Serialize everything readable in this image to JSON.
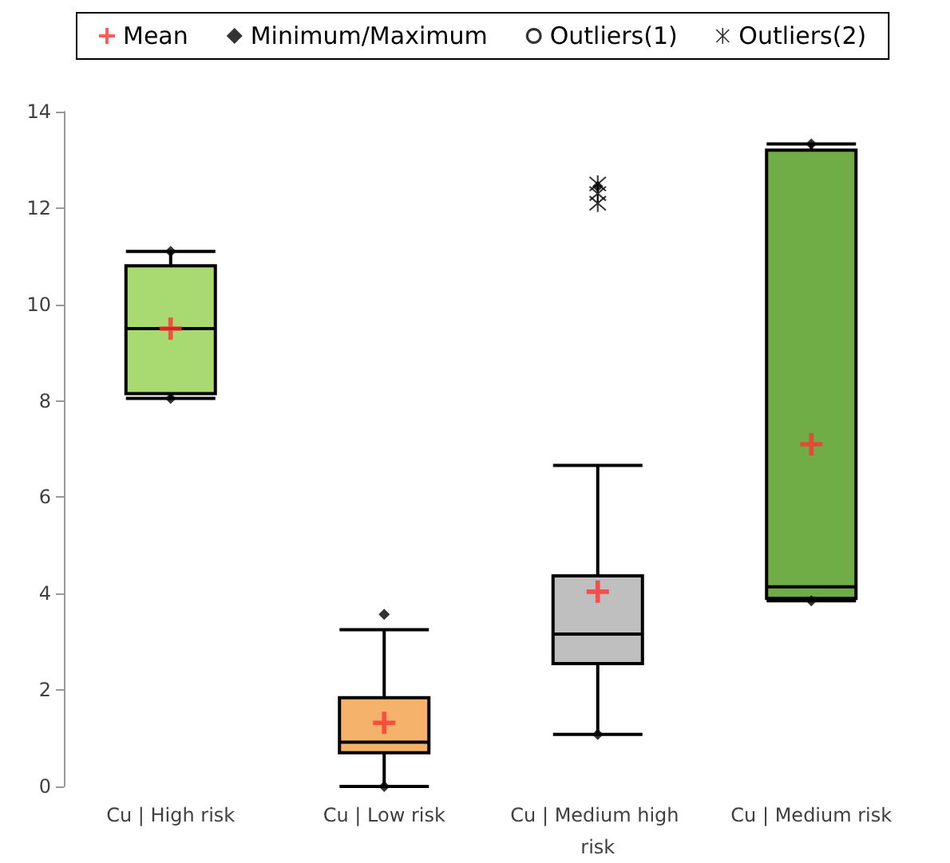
{
  "chart_data": {
    "type": "box",
    "categories": [
      "Cu | High risk",
      "Cu | Low risk",
      "Cu | Medium high risk",
      "Cu | Medium risk"
    ],
    "ylim": [
      0,
      14
    ],
    "yticks": [
      0,
      2,
      4,
      6,
      8,
      10,
      12,
      14
    ],
    "grid": false,
    "legend": "top",
    "series": [
      {
        "colors": [
          "#a9d971",
          "#f4b26b",
          "#bfbfbf",
          "#70ad47"
        ],
        "boxes": [
          {
            "low": 8.05,
            "q1": 8.15,
            "median": 9.5,
            "q3": 10.8,
            "high": 11.1
          },
          {
            "low": 0,
            "q1": 0.7,
            "median": 0.92,
            "q3": 1.84,
            "high": 3.25
          },
          {
            "low": 1.08,
            "q1": 2.55,
            "median": 3.16,
            "q3": 4.37,
            "high": 6.66
          },
          {
            "low": 3.85,
            "q1": 3.9,
            "median": 4.14,
            "q3": 13.2,
            "high": 13.33
          }
        ]
      },
      {
        "type": "scatter",
        "name": "Mean",
        "color": "#ff3333",
        "marker": "cross",
        "x": [
          "Cu | High risk",
          "Cu | Low risk",
          "Cu | Medium high risk",
          "Cu | Medium risk"
        ],
        "values": [
          9.5,
          1.32,
          4.04,
          7.1
        ]
      },
      {
        "type": "scatter",
        "name": "Minimum/Maximum",
        "color": "#000000",
        "marker": "diamond",
        "x": [
          "Cu | High risk",
          "Cu | High risk",
          "Cu | Low risk",
          "Cu | Low risk",
          "Cu | Medium high risk",
          "Cu | Medium high risk",
          "Cu | Medium risk",
          "Cu | Medium risk"
        ],
        "values": [
          8.05,
          11.1,
          0,
          3.57,
          1.08,
          12.45,
          3.85,
          13.33
        ]
      },
      {
        "type": "scatter",
        "name": "Outliers(1)",
        "color": "#000000",
        "marker": "circle",
        "values": [
          null,
          null,
          null,
          null
        ]
      },
      {
        "type": "scatter",
        "name": "Outliers(2)",
        "color": "#000000",
        "x": [
          "Cu | Medium high risk",
          "Cu | Medium high risk",
          "Cu | Medium high risk"
        ],
        "values": [
          12.5,
          12.3,
          12.1
        ]
      }
    ]
  }
}
